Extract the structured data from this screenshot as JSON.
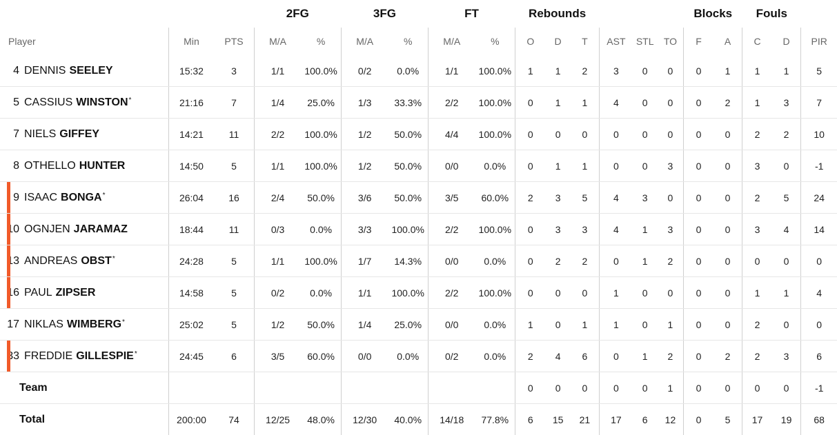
{
  "groups": {
    "fg2": "2FG",
    "fg3": "3FG",
    "ft": "FT",
    "rebounds": "Rebounds",
    "blocks": "Blocks",
    "fouls": "Fouls"
  },
  "headers": [
    "Player",
    "Min",
    "PTS",
    "M/A",
    "%",
    "M/A",
    "%",
    "M/A",
    "%",
    "O",
    "D",
    "T",
    "AST",
    "STL",
    "TO",
    "F",
    "A",
    "C",
    "D",
    "PIR"
  ],
  "accent_color": "#f15a29",
  "players": [
    {
      "num": "4",
      "first": "DENNIS",
      "last": "SEELEY",
      "star": "",
      "highlight": false,
      "stats": [
        "15:32",
        "3",
        "1/1",
        "100.0%",
        "0/2",
        "0.0%",
        "1/1",
        "100.0%",
        "1",
        "1",
        "2",
        "3",
        "0",
        "0",
        "0",
        "1",
        "1",
        "1",
        "5"
      ]
    },
    {
      "num": "5",
      "first": "CASSIUS",
      "last": "WINSTON",
      "star": "*",
      "highlight": false,
      "stats": [
        "21:16",
        "7",
        "1/4",
        "25.0%",
        "1/3",
        "33.3%",
        "2/2",
        "100.0%",
        "0",
        "1",
        "1",
        "4",
        "0",
        "0",
        "0",
        "2",
        "1",
        "3",
        "7"
      ]
    },
    {
      "num": "7",
      "first": "NIELS",
      "last": "GIFFEY",
      "star": "",
      "highlight": false,
      "stats": [
        "14:21",
        "11",
        "2/2",
        "100.0%",
        "1/2",
        "50.0%",
        "4/4",
        "100.0%",
        "0",
        "0",
        "0",
        "0",
        "0",
        "0",
        "0",
        "0",
        "2",
        "2",
        "10"
      ]
    },
    {
      "num": "8",
      "first": "OTHELLO",
      "last": "HUNTER",
      "star": "",
      "highlight": false,
      "stats": [
        "14:50",
        "5",
        "1/1",
        "100.0%",
        "1/2",
        "50.0%",
        "0/0",
        "0.0%",
        "0",
        "1",
        "1",
        "0",
        "0",
        "3",
        "0",
        "0",
        "3",
        "0",
        "-1"
      ]
    },
    {
      "num": "9",
      "first": "ISAAC",
      "last": "BONGA",
      "star": "*",
      "highlight": true,
      "stats": [
        "26:04",
        "16",
        "2/4",
        "50.0%",
        "3/6",
        "50.0%",
        "3/5",
        "60.0%",
        "2",
        "3",
        "5",
        "4",
        "3",
        "0",
        "0",
        "0",
        "2",
        "5",
        "24"
      ]
    },
    {
      "num": "10",
      "first": "OGNJEN",
      "last": "JARAMAZ",
      "star": "",
      "highlight": true,
      "stats": [
        "18:44",
        "11",
        "0/3",
        "0.0%",
        "3/3",
        "100.0%",
        "2/2",
        "100.0%",
        "0",
        "3",
        "3",
        "4",
        "1",
        "3",
        "0",
        "0",
        "3",
        "4",
        "14"
      ]
    },
    {
      "num": "13",
      "first": "ANDREAS",
      "last": "OBST",
      "star": "*",
      "highlight": true,
      "stats": [
        "24:28",
        "5",
        "1/1",
        "100.0%",
        "1/7",
        "14.3%",
        "0/0",
        "0.0%",
        "0",
        "2",
        "2",
        "0",
        "1",
        "2",
        "0",
        "0",
        "0",
        "0",
        "0"
      ]
    },
    {
      "num": "16",
      "first": "PAUL",
      "last": "ZIPSER",
      "star": "",
      "highlight": true,
      "stats": [
        "14:58",
        "5",
        "0/2",
        "0.0%",
        "1/1",
        "100.0%",
        "2/2",
        "100.0%",
        "0",
        "0",
        "0",
        "1",
        "0",
        "0",
        "0",
        "0",
        "1",
        "1",
        "4"
      ]
    },
    {
      "num": "17",
      "first": "NIKLAS",
      "last": "WIMBERG",
      "star": "*",
      "highlight": false,
      "stats": [
        "25:02",
        "5",
        "1/2",
        "50.0%",
        "1/4",
        "25.0%",
        "0/0",
        "0.0%",
        "1",
        "0",
        "1",
        "1",
        "0",
        "1",
        "0",
        "0",
        "2",
        "0",
        "0"
      ]
    },
    {
      "num": "33",
      "first": "FREDDIE",
      "last": "GILLESPIE",
      "star": "*",
      "highlight": true,
      "stats": [
        "24:45",
        "6",
        "3/5",
        "60.0%",
        "0/0",
        "0.0%",
        "0/2",
        "0.0%",
        "2",
        "4",
        "6",
        "0",
        "1",
        "2",
        "0",
        "2",
        "2",
        "3",
        "6"
      ]
    }
  ],
  "team": {
    "label": "Team",
    "stats": [
      "",
      "",
      "",
      "",
      "",
      "",
      "",
      "",
      "0",
      "0",
      "0",
      "0",
      "0",
      "1",
      "0",
      "0",
      "0",
      "0",
      "-1"
    ]
  },
  "total": {
    "label": "Total",
    "stats": [
      "200:00",
      "74",
      "12/25",
      "48.0%",
      "12/30",
      "40.0%",
      "14/18",
      "77.8%",
      "6",
      "15",
      "21",
      "17",
      "6",
      "12",
      "0",
      "5",
      "17",
      "19",
      "68"
    ]
  }
}
